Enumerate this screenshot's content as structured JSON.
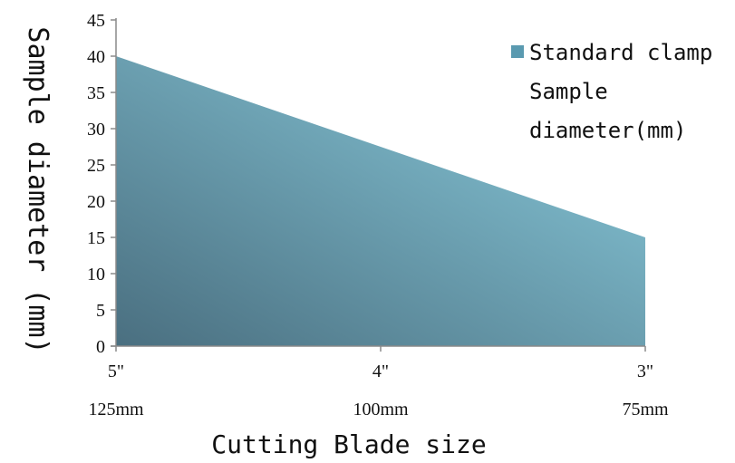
{
  "chart_data": {
    "type": "area",
    "categories": [
      "5\"",
      "4\"",
      "3\""
    ],
    "category_sublabels": [
      "125mm",
      "100mm",
      "75mm"
    ],
    "series": [
      {
        "name": "Standard clamp Sample diameter(mm)",
        "values": [
          40,
          27.5,
          15
        ]
      }
    ],
    "xlabel": "Cutting Blade size",
    "ylabel": "Sample diameter (mm)",
    "ylim": [
      0,
      45
    ],
    "yticks": [
      0,
      5,
      10,
      15,
      20,
      25,
      30,
      35,
      40,
      45
    ],
    "legend_position": "right",
    "legend_lines": [
      "Standard clamp",
      "Sample",
      "diameter(mm)"
    ],
    "grid": false,
    "colors": {
      "area_dark": "#4a6f80",
      "area_light": "#8ccfe0",
      "legend_swatch": "#5a9ab0"
    }
  }
}
